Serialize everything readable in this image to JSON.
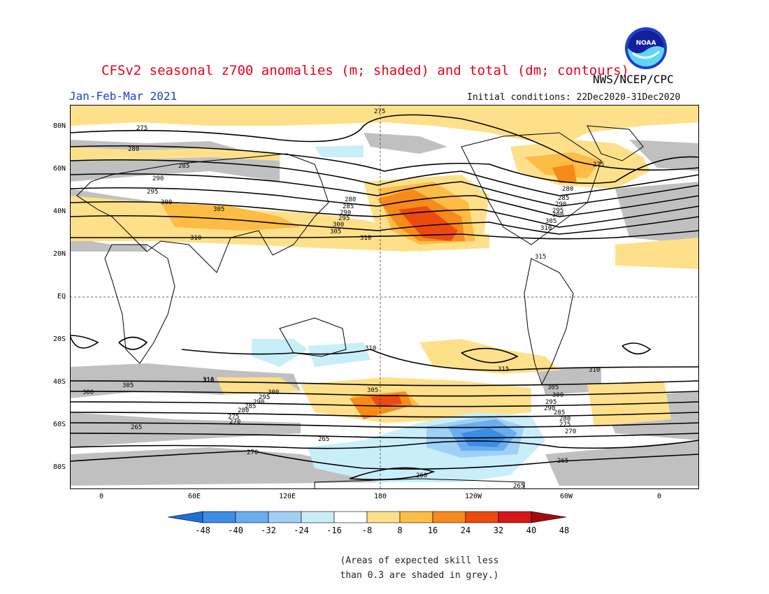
{
  "header": {
    "title": "CFSv2 seasonal z700 anomalies (m; shaded) and total (dm; contours)",
    "agency": "NWS/NCEP/CPC",
    "season": "Jan-Feb-Mar 2021",
    "initial_conditions": "Initial conditions: 22Dec2020-31Dec2020",
    "logo_text": "NOAA"
  },
  "map": {
    "lat_labels": [
      "80N",
      "60N",
      "40N",
      "20N",
      "EQ",
      "20S",
      "40S",
      "60S",
      "80S"
    ],
    "lon_labels": [
      "0",
      "60E",
      "120E",
      "180",
      "120W",
      "60W",
      "0"
    ],
    "contour_labels": [
      "275",
      "275",
      "280",
      "285",
      "290",
      "295",
      "300",
      "305",
      "310",
      "310",
      "280",
      "285",
      "290",
      "295",
      "300",
      "305",
      "275",
      "280",
      "285",
      "290",
      "295",
      "300",
      "305",
      "310",
      "315",
      "310",
      "315",
      "310",
      "310",
      "305",
      "300",
      "295",
      "290",
      "285",
      "280",
      "275",
      "270",
      "265",
      "265",
      "270",
      "260",
      "265",
      "305",
      "300",
      "295",
      "290",
      "285",
      "280",
      "275",
      "270",
      "265",
      "300",
      "305",
      "310"
    ]
  },
  "colorbar": {
    "labels": [
      "-48",
      "-40",
      "-32",
      "-24",
      "-16",
      "-8",
      "8",
      "16",
      "24",
      "32",
      "40",
      "48"
    ],
    "colors": [
      "#1e6fd9",
      "#3c8de6",
      "#6aaef0",
      "#9fd0f6",
      "#c8eefa",
      "#ffffff",
      "#ffe08a",
      "#fdbc43",
      "#f88a1a",
      "#ee4a10",
      "#d61616",
      "#a30b0b"
    ]
  },
  "note": {
    "line1": "(Areas of expected skill less",
    "line2": "than 0.3 are shaded in grey.)"
  }
}
